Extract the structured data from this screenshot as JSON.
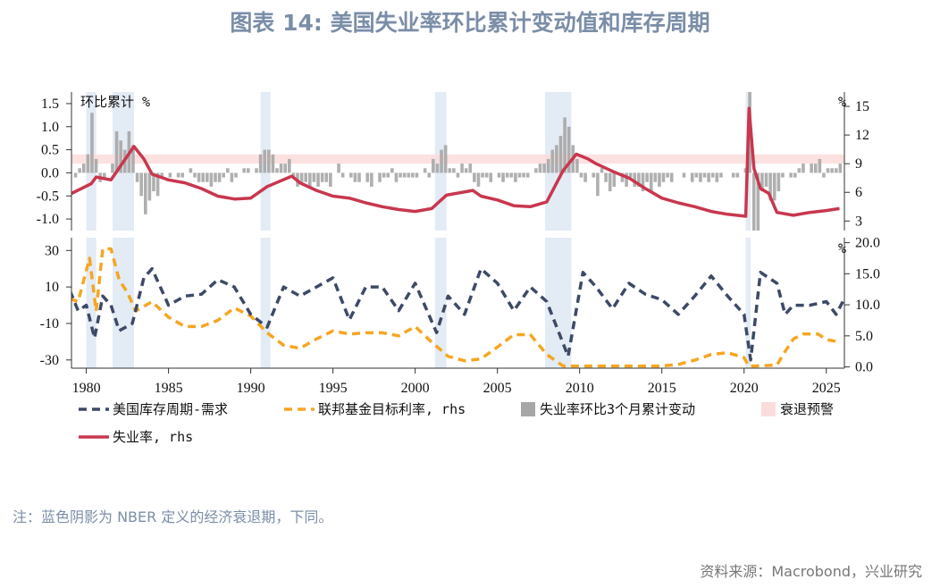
{
  "title": "图表 14: 美国失业率环比累计变动值和库存周期",
  "note": "注：蓝色阴影为 NBER 定义的经济衰退期，下同。",
  "source": "资料来源：Macrobond，兴业研究",
  "colors": {
    "inventory": "#3d4a66",
    "fed": "#f5a623",
    "unemp": "#c8374e",
    "bars": "#a6a6a6",
    "recession": "#e3ebf5",
    "warning": "#fbdcdc"
  },
  "chart_data": [
    {
      "type": "bar+line",
      "panel": "top",
      "left_label": "环比累计 %",
      "right_label": "%",
      "left_ticks": [
        "1.5",
        "1.0",
        "0.5",
        "0.0",
        "-0.5",
        "-1.0"
      ],
      "left_tick_values": [
        1.5,
        1.0,
        0.5,
        0.0,
        -0.5,
        -1.0
      ],
      "right_ticks": [
        "15",
        "12",
        "9",
        "6",
        "3"
      ],
      "right_tick_values": [
        15,
        12,
        9,
        6,
        3
      ],
      "ylim_left": [
        -1.25,
        1.75
      ],
      "ylim_right": [
        2.0,
        16.5
      ],
      "warning_band": [
        0.2,
        0.4
      ],
      "bars_start": 1979.0,
      "bars_step": 0.25,
      "bars": [
        0,
        -0.1,
        0.1,
        0.2,
        0.4,
        1.3,
        0.3,
        -0.2,
        -0.1,
        0,
        0.2,
        0.9,
        0.7,
        0.5,
        0.9,
        0.6,
        -0.2,
        -0.5,
        -0.9,
        -0.6,
        -0.4,
        -0.5,
        -0.1,
        0,
        -0.1,
        0,
        -0.1,
        -0.1,
        0,
        0.1,
        -0.1,
        -0.2,
        -0.2,
        -0.2,
        -0.3,
        -0.2,
        -0.2,
        -0.1,
        0.1,
        -0.2,
        -0.1,
        0,
        0.1,
        0.1,
        0,
        0.1,
        0.4,
        0.5,
        0.5,
        0.4,
        0.1,
        0.2,
        0.2,
        0.3,
        -0.1,
        -0.3,
        -0.2,
        -0.2,
        -0.3,
        -0.2,
        -0.3,
        -0.2,
        -0.2,
        -0.3,
        0,
        0.2,
        -0.1,
        0,
        -0.1,
        -0.2,
        -0.2,
        0,
        -0.2,
        -0.3,
        0,
        -0.2,
        -0.1,
        -0.1,
        0.1,
        -0.2,
        -0.1,
        -0.1,
        -0.1,
        -0.1,
        -0.1,
        0,
        0.1,
        -0.1,
        0.3,
        0.2,
        0.5,
        0.6,
        0.1,
        0.1,
        -0.1,
        0.2,
        0.1,
        0.2,
        -0.2,
        -0.3,
        -0.1,
        -0.1,
        -0.2,
        0,
        -0.1,
        -0.2,
        -0.1,
        -0.1,
        -0.2,
        -0.1,
        -0.1,
        -0.1,
        0,
        0.1,
        0.2,
        0.2,
        0.3,
        0.5,
        0.6,
        0.8,
        1.2,
        1.0,
        0.6,
        0.3,
        -0.1,
        -0.2,
        0,
        -0.1,
        -0.5,
        0.1,
        -0.2,
        -0.4,
        -0.3,
        0,
        -0.2,
        -0.3,
        -0.1,
        -0.3,
        -0.3,
        -0.4,
        -0.2,
        -0.4,
        -0.2,
        -0.3,
        -0.2,
        -0.1,
        -0.2,
        0,
        0,
        -0.1,
        0,
        -0.2,
        -0.1,
        -0.2,
        -0.1,
        -0.2,
        -0.1,
        -0.2,
        -0.1,
        0,
        0,
        -0.1,
        -0.1,
        0,
        0.1,
        11,
        -3,
        -1.5,
        -0.4,
        -0.3,
        -0.6,
        -0.6,
        -0.4,
        -0.1,
        0,
        -0.1,
        -0.1,
        0.1,
        0.2,
        0,
        0.2,
        0.2,
        0.3,
        -0.1,
        0.1,
        0.1,
        0.1,
        0.2
      ],
      "unemployment": [
        [
          1979,
          5.8
        ],
        [
          1980.3,
          6.9
        ],
        [
          1980.6,
          7.6
        ],
        [
          1981.5,
          7.3
        ],
        [
          1982.9,
          10.8
        ],
        [
          1983.5,
          9.5
        ],
        [
          1984,
          7.9
        ],
        [
          1985,
          7.3
        ],
        [
          1986,
          7.0
        ],
        [
          1987,
          6.4
        ],
        [
          1988,
          5.6
        ],
        [
          1989,
          5.3
        ],
        [
          1990,
          5.4
        ],
        [
          1991,
          6.6
        ],
        [
          1992.5,
          7.7
        ],
        [
          1993,
          7.0
        ],
        [
          1994,
          6.2
        ],
        [
          1995,
          5.6
        ],
        [
          1996,
          5.4
        ],
        [
          1997,
          4.9
        ],
        [
          1998,
          4.5
        ],
        [
          1999,
          4.2
        ],
        [
          2000,
          4.0
        ],
        [
          2001,
          4.3
        ],
        [
          2001.9,
          5.7
        ],
        [
          2003.5,
          6.2
        ],
        [
          2004,
          5.6
        ],
        [
          2005,
          5.2
        ],
        [
          2006,
          4.6
        ],
        [
          2007,
          4.5
        ],
        [
          2008,
          5.0
        ],
        [
          2009,
          8.3
        ],
        [
          2009.8,
          10.0
        ],
        [
          2010.5,
          9.5
        ],
        [
          2011,
          9.0
        ],
        [
          2012,
          8.2
        ],
        [
          2013,
          7.5
        ],
        [
          2014,
          6.4
        ],
        [
          2015,
          5.4
        ],
        [
          2016,
          4.9
        ],
        [
          2017,
          4.5
        ],
        [
          2018,
          4.0
        ],
        [
          2019,
          3.7
        ],
        [
          2020.1,
          3.5
        ],
        [
          2020.3,
          14.8
        ],
        [
          2020.6,
          8.5
        ],
        [
          2021,
          6.4
        ],
        [
          2021.5,
          5.9
        ],
        [
          2022,
          3.9
        ],
        [
          2023,
          3.6
        ],
        [
          2024,
          3.9
        ],
        [
          2025,
          4.1
        ],
        [
          2025.8,
          4.3
        ]
      ]
    },
    {
      "type": "line",
      "panel": "bottom",
      "left_ticks": [
        "30",
        "10",
        "-10",
        "-30"
      ],
      "left_tick_values": [
        30,
        10,
        -10,
        -30
      ],
      "right_ticks": [
        "20.0",
        "15.0",
        "10.0",
        "5.0",
        "0.0"
      ],
      "right_tick_values": [
        20,
        15,
        10,
        5,
        0
      ],
      "ylim_left": [
        -34.5,
        37
      ],
      "ylim_right": [
        -0.2,
        20.8
      ],
      "x_ticks": [
        "1980",
        "1985",
        "1990",
        "1995",
        "2000",
        "2005",
        "2010",
        "2015",
        "2020",
        "2025"
      ],
      "x_tick_values": [
        1980,
        1985,
        1990,
        1995,
        2000,
        2005,
        2010,
        2015,
        2020,
        2025
      ],
      "xlim": [
        1979.1,
        2026.1
      ],
      "recessions": [
        [
          1980.0,
          1980.6
        ],
        [
          1981.6,
          1982.9
        ],
        [
          1990.6,
          1991.2
        ],
        [
          2001.2,
          2001.9
        ],
        [
          2007.9,
          2009.5
        ],
        [
          2020.1,
          2020.4
        ]
      ],
      "inventory": [
        [
          1979,
          8
        ],
        [
          1979.5,
          -3
        ],
        [
          1980,
          0
        ],
        [
          1980.5,
          -18
        ],
        [
          1981,
          5
        ],
        [
          1981.5,
          0
        ],
        [
          1982,
          -14
        ],
        [
          1982.8,
          -10
        ],
        [
          1983.5,
          15
        ],
        [
          1984,
          20
        ],
        [
          1985,
          0
        ],
        [
          1986,
          5
        ],
        [
          1987,
          6
        ],
        [
          1988,
          14
        ],
        [
          1989,
          10
        ],
        [
          1990,
          -5
        ],
        [
          1991,
          -12
        ],
        [
          1992,
          10
        ],
        [
          1993,
          5
        ],
        [
          1994,
          10
        ],
        [
          1995,
          15
        ],
        [
          1996,
          -8
        ],
        [
          1997,
          10
        ],
        [
          1998,
          10
        ],
        [
          1999,
          -3
        ],
        [
          2000,
          12
        ],
        [
          2001.3,
          -15
        ],
        [
          2002,
          5
        ],
        [
          2003,
          -5
        ],
        [
          2004,
          20
        ],
        [
          2005,
          12
        ],
        [
          2006,
          -3
        ],
        [
          2007,
          10
        ],
        [
          2008,
          2
        ],
        [
          2009.3,
          -28
        ],
        [
          2010.2,
          18
        ],
        [
          2011,
          10
        ],
        [
          2012,
          -2
        ],
        [
          2013,
          12
        ],
        [
          2014,
          6
        ],
        [
          2015,
          3
        ],
        [
          2016,
          -5
        ],
        [
          2017,
          5
        ],
        [
          2018,
          16
        ],
        [
          2019,
          5
        ],
        [
          2020,
          -5
        ],
        [
          2020.4,
          -30
        ],
        [
          2021,
          18
        ],
        [
          2022,
          12
        ],
        [
          2022.5,
          -5
        ],
        [
          2023,
          0
        ],
        [
          2024,
          0
        ],
        [
          2025,
          2
        ],
        [
          2025.6,
          -5
        ],
        [
          2026,
          2
        ]
      ],
      "fed_funds": [
        [
          1979,
          11
        ],
        [
          1979.5,
          10.5
        ],
        [
          1980.2,
          17.5
        ],
        [
          1980.6,
          9
        ],
        [
          1981,
          19
        ],
        [
          1981.5,
          19
        ],
        [
          1982,
          14
        ],
        [
          1982.5,
          12
        ],
        [
          1983,
          9
        ],
        [
          1984,
          10.5
        ],
        [
          1985,
          8
        ],
        [
          1986,
          6.5
        ],
        [
          1987,
          6.5
        ],
        [
          1988,
          7.5
        ],
        [
          1989,
          9.5
        ],
        [
          1990,
          8.2
        ],
        [
          1991,
          5.5
        ],
        [
          1992,
          3.5
        ],
        [
          1993,
          3
        ],
        [
          1994,
          4.5
        ],
        [
          1995,
          5.8
        ],
        [
          1996,
          5.3
        ],
        [
          1997,
          5.5
        ],
        [
          1998,
          5.5
        ],
        [
          1999,
          5
        ],
        [
          2000,
          6.5
        ],
        [
          2001,
          4
        ],
        [
          2002,
          1.7
        ],
        [
          2003,
          1.0
        ],
        [
          2004,
          1.3
        ],
        [
          2005,
          3.2
        ],
        [
          2006,
          5.2
        ],
        [
          2007,
          5.2
        ],
        [
          2008,
          2
        ],
        [
          2009,
          0.15
        ],
        [
          2015,
          0.15
        ],
        [
          2016,
          0.4
        ],
        [
          2017,
          1.1
        ],
        [
          2018,
          2.0
        ],
        [
          2019,
          2.3
        ],
        [
          2020,
          1.5
        ],
        [
          2020.3,
          0.1
        ],
        [
          2022,
          0.3
        ],
        [
          2022.5,
          2.5
        ],
        [
          2023,
          4.5
        ],
        [
          2023.6,
          5.3
        ],
        [
          2024.5,
          5.3
        ],
        [
          2025,
          4.4
        ],
        [
          2025.8,
          4.0
        ]
      ]
    }
  ],
  "legend": {
    "inventory": "美国库存周期-需求",
    "fed": "联邦基金目标利率, rhs",
    "bars": "失业率环比3个月累计变动",
    "warning": "衰退预警",
    "unemp": "失业率, rhs"
  }
}
